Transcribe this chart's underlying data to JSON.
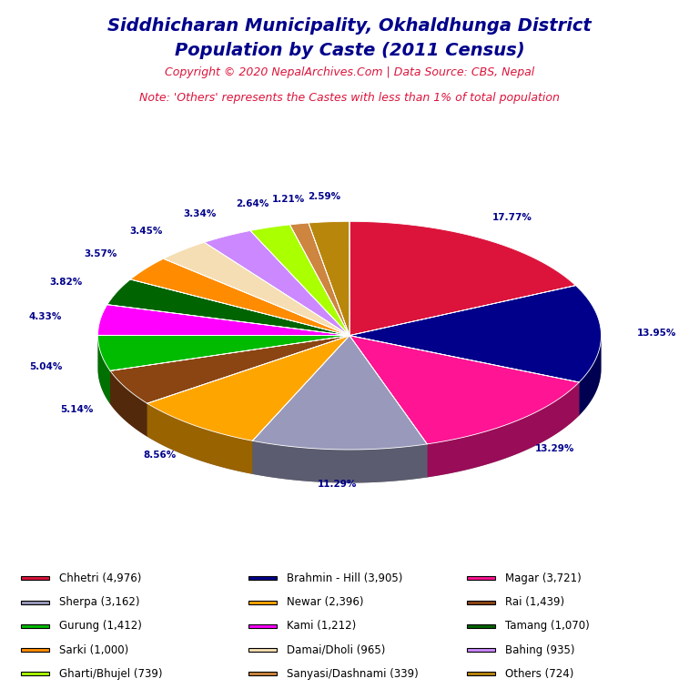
{
  "title_line1": "Siddhicharan Municipality, Okhaldhunga District",
  "title_line2": "Population by Caste (2011 Census)",
  "copyright": "Copyright © 2020 NepalArchives.Com | Data Source: CBS, Nepal",
  "note": "Note: 'Others' represents the Castes with less than 1% of total population",
  "labels": [
    "Chhetri (4,976)",
    "Brahmin - Hill (3,905)",
    "Magar (3,721)",
    "Sherpa (3,162)",
    "Newar (2,396)",
    "Rai (1,439)",
    "Gurung (1,412)",
    "Kami (1,212)",
    "Tamang (1,070)",
    "Sarki (1,000)",
    "Damai/Dholi (965)",
    "Bahing (935)",
    "Gharti/Bhujel (739)",
    "Sanyasi/Dashnami (339)",
    "Others (724)"
  ],
  "values": [
    4976,
    3905,
    3721,
    3162,
    2396,
    1439,
    1412,
    1212,
    1070,
    1000,
    965,
    935,
    739,
    339,
    724
  ],
  "colors": [
    "#DC143C",
    "#00008B",
    "#FF1493",
    "#9999BB",
    "#FFA500",
    "#8B4513",
    "#00BB00",
    "#FF00FF",
    "#006400",
    "#FF8C00",
    "#F5DEB3",
    "#CC88FF",
    "#AAFF00",
    "#CD853F",
    "#B8860B"
  ],
  "percentages": [
    17.77,
    13.95,
    13.29,
    11.29,
    8.56,
    5.14,
    5.04,
    4.33,
    3.82,
    3.57,
    3.45,
    3.34,
    2.64,
    1.21,
    2.59
  ],
  "title_color": "#00008B",
  "copyright_color": "#DC143C",
  "note_color": "#DC143C",
  "pct_label_color": "#00008B",
  "background_color": "#FFFFFF",
  "legend_order": [
    0,
    1,
    2,
    3,
    4,
    5,
    6,
    7,
    8,
    9,
    10,
    11,
    12,
    13,
    14
  ],
  "legend_cols_order": [
    [
      0,
      3,
      6,
      9,
      12
    ],
    [
      1,
      4,
      7,
      10,
      13
    ],
    [
      2,
      5,
      8,
      11,
      14
    ]
  ]
}
